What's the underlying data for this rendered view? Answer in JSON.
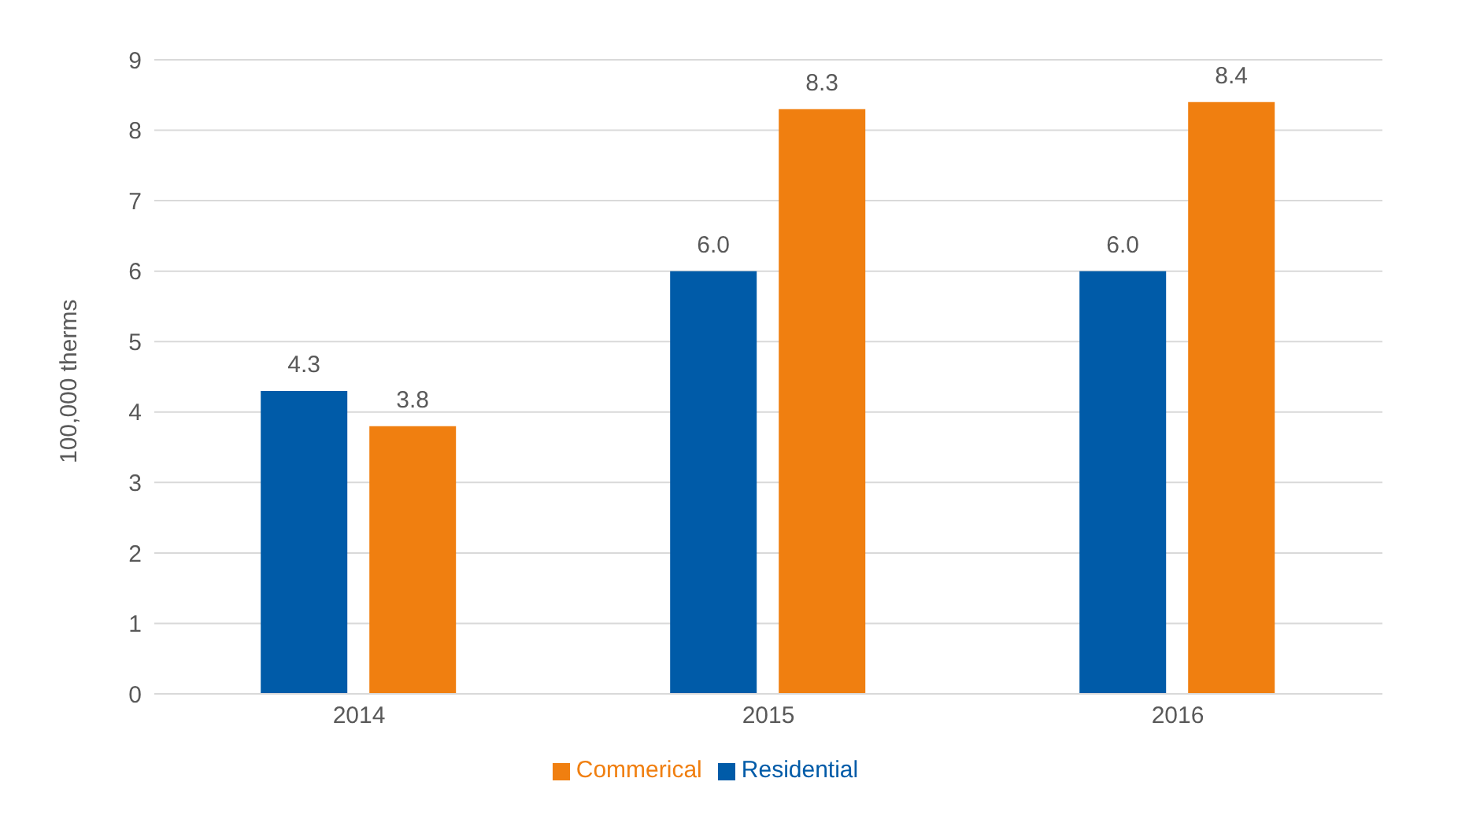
{
  "chart_data": {
    "type": "bar",
    "ylabel": "100,000 therms",
    "categories": [
      "2014",
      "2015",
      "2016"
    ],
    "series": [
      {
        "name": "Residential",
        "color": "#005ba8",
        "values": [
          4.3,
          6.0,
          6.0
        ],
        "value_labels": [
          "4.3",
          "6.0",
          "6.0"
        ]
      },
      {
        "name": "Commerical",
        "color": "#f07f10",
        "values": [
          3.8,
          8.3,
          8.4
        ],
        "value_labels": [
          "3.8",
          "8.3",
          "8.4"
        ]
      }
    ],
    "ylim": [
      0,
      9
    ],
    "yticks": [
      0,
      1,
      2,
      3,
      4,
      5,
      6,
      7,
      8,
      9
    ],
    "grid": "y",
    "legend": "bottom"
  }
}
